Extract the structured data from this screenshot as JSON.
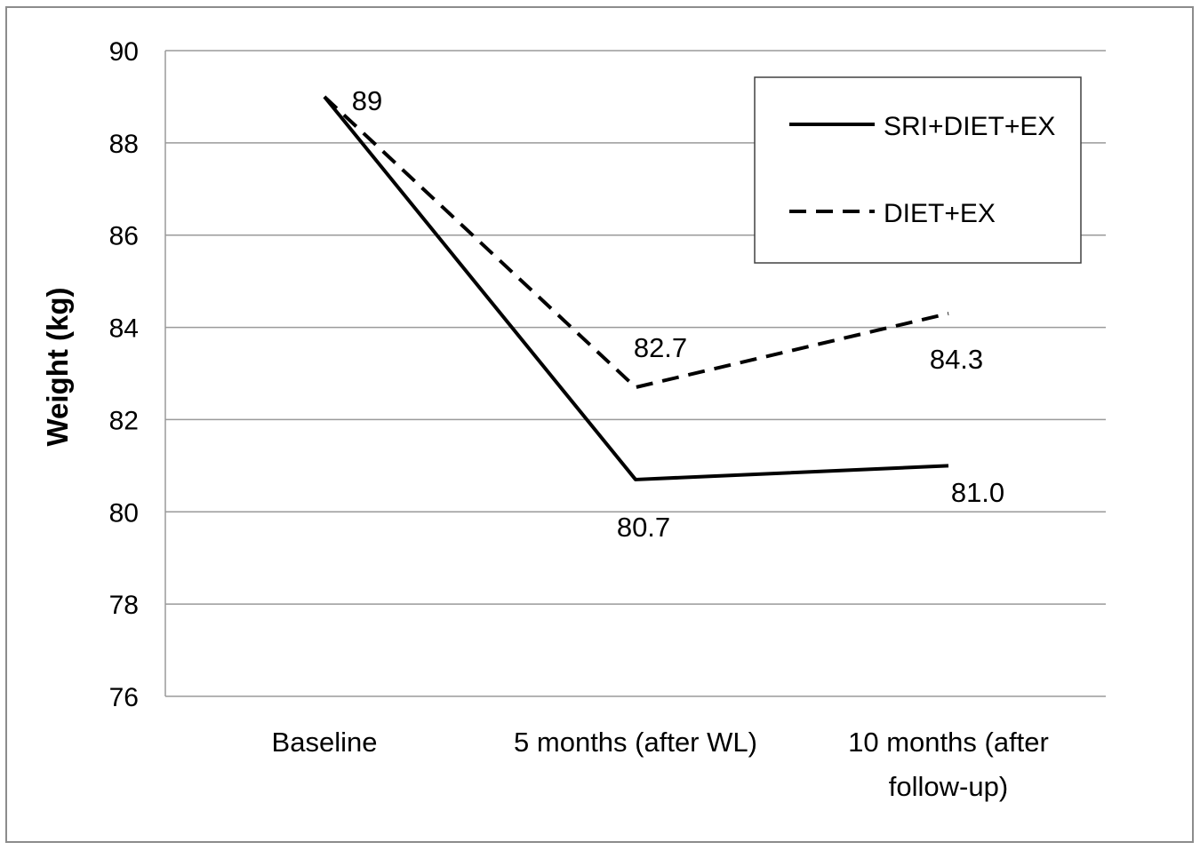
{
  "chart_data": {
    "type": "line",
    "title": "",
    "xlabel": "",
    "ylabel": "Weight (kg)",
    "categories": [
      [
        "Baseline"
      ],
      [
        "5 months (after WL)"
      ],
      [
        "10 months (after",
        "follow-up)"
      ]
    ],
    "ylim": [
      76,
      90
    ],
    "yticks": [
      76,
      78,
      80,
      82,
      84,
      86,
      88,
      90
    ],
    "grid": "horizontal",
    "legend": "top-right",
    "series": [
      {
        "name": "SRI+DIET+EX",
        "values": [
          89,
          80.7,
          81.0
        ],
        "labels": [
          "89",
          "80.7",
          "81.0"
        ],
        "style": "solid",
        "color": "#000000"
      },
      {
        "name": "DIET+EX",
        "values": [
          89,
          82.7,
          84.3
        ],
        "labels": [
          "",
          "82.7",
          "84.3"
        ],
        "style": "dashed",
        "color": "#000000"
      }
    ]
  }
}
